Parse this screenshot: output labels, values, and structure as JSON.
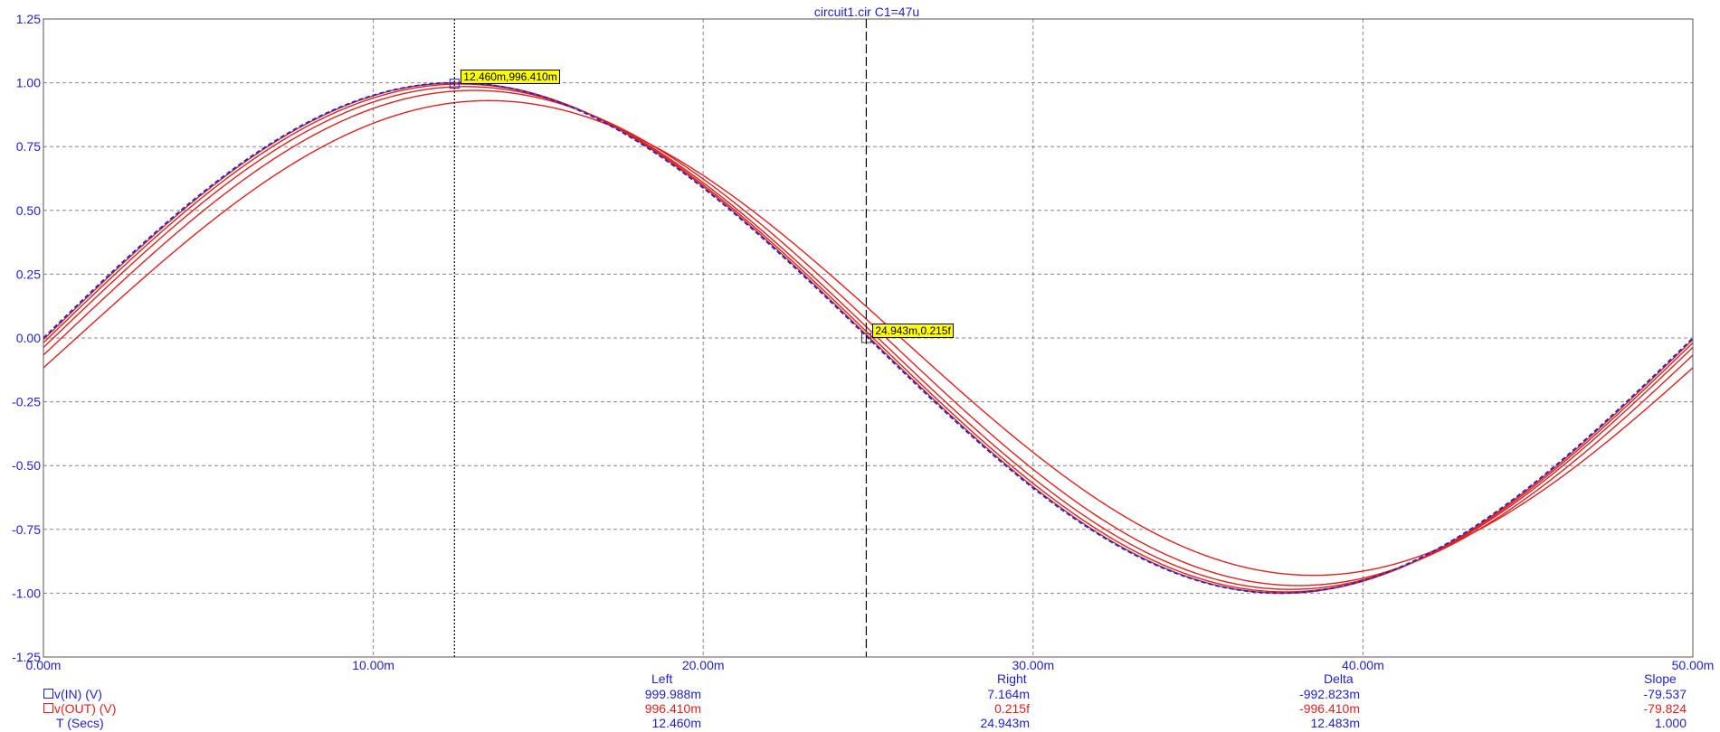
{
  "chart_data": {
    "type": "line",
    "title": "circuit1.cir C1=47u",
    "xlabel": "",
    "ylabel": "",
    "xlim": [
      0,
      50
    ],
    "ylim": [
      -1.25,
      1.25
    ],
    "grid": true,
    "x_ticks": [
      "0.00m",
      "10.00m",
      "20.00m",
      "30.00m",
      "40.00m",
      "50.00m"
    ],
    "y_ticks": [
      "1.25",
      "1.00",
      "0.75",
      "0.50",
      "0.25",
      "0.00",
      "-0.25",
      "-0.50",
      "-0.75",
      "-1.00",
      "-1.25"
    ],
    "x_unit_note": "ms",
    "frequency_hz": 20,
    "series": [
      {
        "name": "v(IN) (V)",
        "color": "#2222cc",
        "style": "dashed",
        "amplitude": 1.0,
        "phase_lag_ms": 0.0
      },
      {
        "name": "v(OUT) (V)",
        "color": "#dd2222",
        "style": "solid",
        "amplitude": 1.0,
        "phase_lag_ms": 0.05
      },
      {
        "name": "v(OUT) (V)",
        "color": "#dd2222",
        "style": "solid",
        "amplitude": 0.995,
        "phase_lag_ms": 0.15
      },
      {
        "name": "v(OUT) (V)",
        "color": "#dd2222",
        "style": "solid",
        "amplitude": 0.985,
        "phase_lag_ms": 0.3
      },
      {
        "name": "v(OUT) (V)",
        "color": "#dd2222",
        "style": "solid",
        "amplitude": 0.97,
        "phase_lag_ms": 0.55
      },
      {
        "name": "v(OUT) (V)",
        "color": "#dd2222",
        "style": "solid",
        "amplitude": 0.93,
        "phase_lag_ms": 1.0
      }
    ],
    "cursors": [
      {
        "x": 12.46,
        "label": "12.460m,996.410m",
        "style": "dotted",
        "marker_y": 0.99641
      },
      {
        "x": 24.943,
        "label": "24.943m,0.215f",
        "style": "dashed",
        "marker_y": 0.0
      }
    ]
  },
  "measurements": {
    "headers": [
      "Left",
      "Right",
      "Delta",
      "Slope"
    ],
    "rows": [
      {
        "name": "v(IN) (V)",
        "color": "#2222cc",
        "values": [
          "999.988m",
          "7.164m",
          "-992.823m",
          "-79.537"
        ]
      },
      {
        "name": "v(OUT) (V)",
        "color": "#dd2222",
        "values": [
          "996.410m",
          "0.215f",
          "-996.410m",
          "-79.824"
        ]
      },
      {
        "name": "T (Secs)",
        "color": "#2222cc",
        "values": [
          "12.460m",
          "24.943m",
          "12.483m",
          "1.000"
        ]
      }
    ]
  },
  "colors": {
    "axis_text": "#2222cc",
    "grid": "#888888",
    "cursor_label_bg": "#ffff00"
  }
}
